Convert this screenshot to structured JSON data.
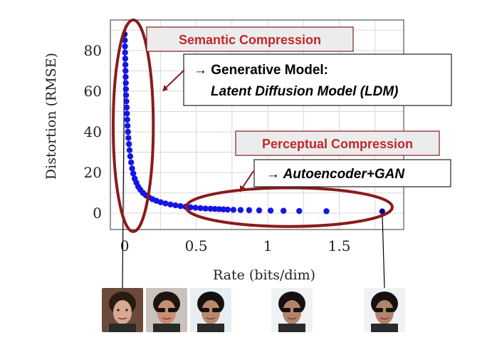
{
  "chart_data": {
    "type": "scatter",
    "title": "",
    "xlabel": "Rate (bits/dim)",
    "ylabel": "Distortion (RMSE)",
    "xlim": [
      -0.1,
      1.95
    ],
    "ylim": [
      -8,
      95
    ],
    "x_ticks": [
      0,
      0.5,
      1,
      1.5
    ],
    "x_tick_labels": [
      "0",
      "0.5",
      "1",
      "1.5"
    ],
    "y_ticks": [
      0,
      20,
      40,
      60,
      80
    ],
    "y_tick_labels": [
      "0",
      "20",
      "40",
      "60",
      "80"
    ],
    "grid": true,
    "legend": "none",
    "marker_color": "#1515e6",
    "points": [
      {
        "x": 0.0,
        "y": 88
      },
      {
        "x": 0.001,
        "y": 85
      },
      {
        "x": 0.002,
        "y": 82
      },
      {
        "x": 0.003,
        "y": 79
      },
      {
        "x": 0.004,
        "y": 76
      },
      {
        "x": 0.005,
        "y": 73
      },
      {
        "x": 0.006,
        "y": 70
      },
      {
        "x": 0.007,
        "y": 67
      },
      {
        "x": 0.008,
        "y": 64
      },
      {
        "x": 0.009,
        "y": 61
      },
      {
        "x": 0.01,
        "y": 58
      },
      {
        "x": 0.012,
        "y": 55
      },
      {
        "x": 0.014,
        "y": 52
      },
      {
        "x": 0.016,
        "y": 49
      },
      {
        "x": 0.018,
        "y": 46
      },
      {
        "x": 0.02,
        "y": 43
      },
      {
        "x": 0.023,
        "y": 40
      },
      {
        "x": 0.026,
        "y": 37
      },
      {
        "x": 0.03,
        "y": 34
      },
      {
        "x": 0.034,
        "y": 31
      },
      {
        "x": 0.039,
        "y": 28
      },
      {
        "x": 0.045,
        "y": 25
      },
      {
        "x": 0.052,
        "y": 22
      },
      {
        "x": 0.06,
        "y": 19.5
      },
      {
        "x": 0.07,
        "y": 17
      },
      {
        "x": 0.082,
        "y": 15
      },
      {
        "x": 0.095,
        "y": 13
      },
      {
        "x": 0.11,
        "y": 11.5
      },
      {
        "x": 0.128,
        "y": 10
      },
      {
        "x": 0.148,
        "y": 8.8
      },
      {
        "x": 0.17,
        "y": 7.8
      },
      {
        "x": 0.195,
        "y": 6.9
      },
      {
        "x": 0.222,
        "y": 6.1
      },
      {
        "x": 0.252,
        "y": 5.4
      },
      {
        "x": 0.285,
        "y": 4.8
      },
      {
        "x": 0.32,
        "y": 4.3
      },
      {
        "x": 0.355,
        "y": 3.9
      },
      {
        "x": 0.39,
        "y": 3.5
      },
      {
        "x": 0.425,
        "y": 3.2
      },
      {
        "x": 0.46,
        "y": 2.9
      },
      {
        "x": 0.495,
        "y": 2.7
      },
      {
        "x": 0.53,
        "y": 2.5
      },
      {
        "x": 0.565,
        "y": 2.3
      },
      {
        "x": 0.6,
        "y": 2.2
      },
      {
        "x": 0.63,
        "y": 2.1
      },
      {
        "x": 0.66,
        "y": 2.0
      },
      {
        "x": 0.69,
        "y": 1.9
      },
      {
        "x": 0.72,
        "y": 1.8
      },
      {
        "x": 0.76,
        "y": 1.7
      },
      {
        "x": 0.81,
        "y": 1.6
      },
      {
        "x": 0.87,
        "y": 1.5
      },
      {
        "x": 0.94,
        "y": 1.4
      },
      {
        "x": 1.02,
        "y": 1.3
      },
      {
        "x": 1.11,
        "y": 1.2
      },
      {
        "x": 1.22,
        "y": 1.1
      },
      {
        "x": 1.41,
        "y": 1.0
      },
      {
        "x": 1.8,
        "y": 0.9
      }
    ],
    "regions": [
      {
        "name": "semantic",
        "color": "#8b1a1a",
        "cx": 0.06,
        "cy": 43,
        "rx": 0.14,
        "ry": 52
      },
      {
        "name": "perceptual",
        "color": "#8b1a1a",
        "cx": 1.15,
        "cy": 3,
        "rx": 0.72,
        "ry": 9.5
      }
    ],
    "annotations": {
      "semantic_title": "Semantic Compression",
      "generative_line1": "→ Generative Model:",
      "generative_line2": "Latent Diffusion Model (LDM)",
      "perceptual_title": "Perceptual Compression",
      "autoencoder": "→ Autoencoder+GAN"
    },
    "image_links": [
      {
        "x": 0.0,
        "y": 88
      },
      {
        "x": 1.8,
        "y": 0.9
      }
    ]
  },
  "thumbnails": [
    {
      "name": "face-thumb-1",
      "bg": "#6b4a3c",
      "skin": "#d8a891",
      "hair": "#2a1a14",
      "glasses": false
    },
    {
      "name": "face-thumb-2",
      "bg": "#c9c2bd",
      "skin": "#c98f70",
      "hair": "#1c1410",
      "glasses": true
    },
    {
      "name": "face-thumb-3",
      "bg": "#e6eef2",
      "skin": "#b9886c",
      "hair": "#161010",
      "glasses": true
    },
    {
      "name": "face-thumb-4",
      "bg": "#eef2f4",
      "skin": "#b4846a",
      "hair": "#161010",
      "glasses": true
    },
    {
      "name": "face-thumb-5",
      "bg": "#eef2f4",
      "skin": "#b4846a",
      "hair": "#161010",
      "glasses": true
    }
  ]
}
